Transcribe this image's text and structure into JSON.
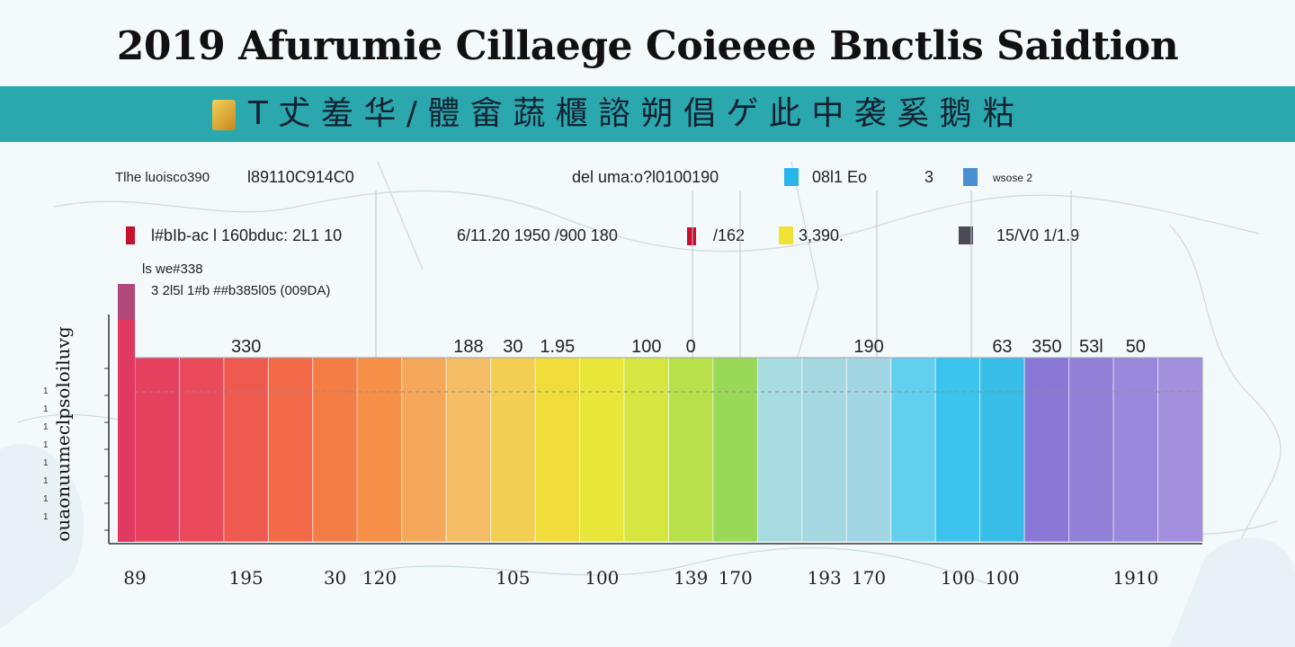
{
  "title": "2019 Afurumie Cillaege Coieeee Bnctlis Saidtion",
  "banner": {
    "text": "T 𠀋 羞 华 / 體    畲 蔬 櫃 諮 朔 倡 ゲ 此 中 袭 奚 鹅 䊀",
    "color": "#2ba8ad"
  },
  "legend": {
    "row1": [
      {
        "text": "Tlhe luoisco390",
        "color": ""
      },
      {
        "text": "l89110C914C0",
        "color": ""
      },
      {
        "text": "del uma:o?l0100190",
        "color": ""
      },
      {
        "text": "08l1 Eo",
        "color": "#26b6ea"
      },
      {
        "text": "3",
        "color": ""
      },
      {
        "text": "wsose 2",
        "color": "#4a8fd0"
      }
    ],
    "row2": [
      {
        "text": "l#bIb-ac l 160bduc: 2L1   10",
        "color": "#c8102e"
      },
      {
        "text": "6/11.20   1950   /900   180",
        "color": ""
      },
      {
        "text": "/162",
        "color": "#c8102e"
      },
      {
        "text": "3,390.",
        "color": "#f2e233"
      },
      {
        "text": "15/V0  1/1.9",
        "color": "#4d4a55"
      }
    ],
    "note1": "ls we#338",
    "note2": "3  2l5l  1#b  ##b385l05 (009DA)"
  },
  "ylabel": "ouaonuumeclpsoloiluvg",
  "y_ticks": [
    "1",
    "1",
    "1",
    "1",
    "1",
    "1",
    "1",
    "1"
  ],
  "chart_data": {
    "type": "bar",
    "title": "2019 Afurumie Cillaege Coieeee Bnctlis Saidtion",
    "xlabel": "",
    "ylabel": "ouaonuumeclpsoloiluvg",
    "grid": true,
    "legend_position": "top",
    "top_labels": [
      {
        "text": "330",
        "at": 2
      },
      {
        "text": "188",
        "at": 7
      },
      {
        "text": "30",
        "at": 8
      },
      {
        "text": "1.95",
        "at": 9
      },
      {
        "text": "100",
        "at": 11
      },
      {
        "text": "0",
        "at": 12
      },
      {
        "text": "190",
        "at": 16
      },
      {
        "text": "63",
        "at": 19
      },
      {
        "text": "350",
        "at": 20
      },
      {
        "text": "53l",
        "at": 21
      },
      {
        "text": "50",
        "at": 22
      }
    ],
    "bottom_labels": [
      {
        "text": "89",
        "at": 0
      },
      {
        "text": "195",
        "at": 2
      },
      {
        "text": "30",
        "at": 4
      },
      {
        "text": "120",
        "at": 5
      },
      {
        "text": "105",
        "at": 8
      },
      {
        "text": "100",
        "at": 10
      },
      {
        "text": "139",
        "at": 12
      },
      {
        "text": "170",
        "at": 13
      },
      {
        "text": "193",
        "at": 15
      },
      {
        "text": "170",
        "at": 16
      },
      {
        "text": "100",
        "at": 18
      },
      {
        "text": "100",
        "at": 19
      },
      {
        "text": "1910",
        "at": 22
      }
    ],
    "bars": [
      {
        "value": 100,
        "color": "#e5405e"
      },
      {
        "value": 100,
        "color": "#ea4a5a"
      },
      {
        "value": 100,
        "color": "#ee5a50"
      },
      {
        "value": 100,
        "color": "#f26a48"
      },
      {
        "value": 100,
        "color": "#f47c45"
      },
      {
        "value": 100,
        "color": "#f69048"
      },
      {
        "value": 100,
        "color": "#f6a85a"
      },
      {
        "value": 100,
        "color": "#f4bd66"
      },
      {
        "value": 100,
        "color": "#f2cf52"
      },
      {
        "value": 100,
        "color": "#f0dc3a"
      },
      {
        "value": 100,
        "color": "#e9e63a"
      },
      {
        "value": 100,
        "color": "#d6e640"
      },
      {
        "value": 100,
        "color": "#b8e04a"
      },
      {
        "value": 100,
        "color": "#9ad858"
      },
      {
        "value": 100,
        "color": "#a8dbe0"
      },
      {
        "value": 100,
        "color": "#a6d8e2"
      },
      {
        "value": 100,
        "color": "#a2d6e4"
      },
      {
        "value": 100,
        "color": "#62cfee"
      },
      {
        "value": 100,
        "color": "#3cc4ef"
      },
      {
        "value": 100,
        "color": "#36bde8"
      },
      {
        "value": 100,
        "color": "#8a78d6"
      },
      {
        "value": 100,
        "color": "#917fd8"
      },
      {
        "value": 100,
        "color": "#9a88dc"
      },
      {
        "value": 100,
        "color": "#a290de"
      }
    ]
  }
}
